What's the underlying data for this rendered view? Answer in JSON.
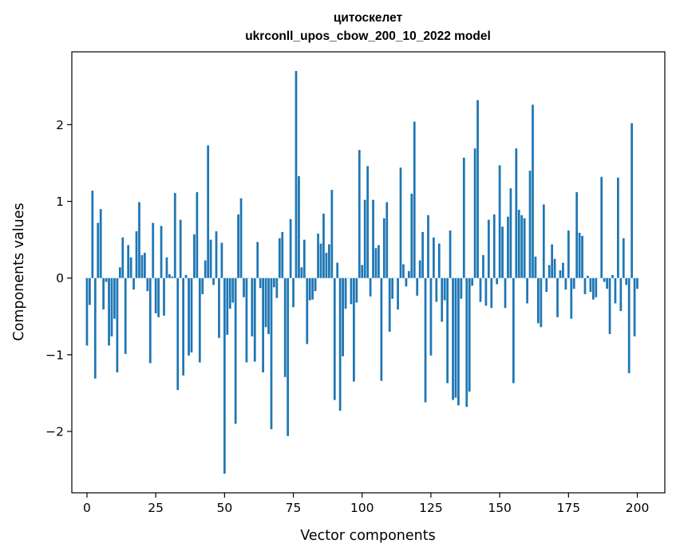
{
  "chart_data": {
    "type": "bar",
    "title": "цитоскелет",
    "subtitle": "ukrconll_upos_cbow_200_10_2022 model",
    "xlabel": "Vector components",
    "ylabel": "Components values",
    "xlim": [
      -5.5,
      210
    ],
    "ylim": [
      -2.8,
      2.95
    ],
    "xticks": [
      0,
      25,
      50,
      75,
      100,
      125,
      150,
      175,
      200
    ],
    "yticks": [
      -2,
      -1,
      0,
      1,
      2
    ],
    "xtick_labels": [
      "0",
      "25",
      "50",
      "75",
      "100",
      "125",
      "150",
      "175",
      "200"
    ],
    "ytick_labels": [
      "−2",
      "−1",
      "0",
      "1",
      "2"
    ],
    "bar_color": "#1f77b4",
    "grid": false,
    "values": [
      -0.88,
      -0.35,
      1.14,
      -1.31,
      0.72,
      0.9,
      -0.41,
      -0.05,
      -0.88,
      -0.76,
      -0.53,
      -1.23,
      0.14,
      0.53,
      -0.99,
      0.43,
      0.27,
      -0.15,
      0.61,
      0.99,
      0.3,
      0.33,
      -0.17,
      -1.11,
      0.72,
      -0.46,
      -0.51,
      0.68,
      -0.49,
      0.27,
      0.05,
      0.02,
      1.11,
      -1.46,
      0.76,
      -1.27,
      0.04,
      -1.01,
      -0.97,
      0.57,
      1.12,
      -1.1,
      -0.21,
      0.23,
      1.73,
      0.5,
      -0.09,
      0.61,
      -0.78,
      0.46,
      -2.55,
      -0.74,
      -0.4,
      -0.32,
      -1.9,
      0.83,
      1.04,
      -0.25,
      -1.1,
      0.0,
      -0.76,
      -1.09,
      0.47,
      -0.13,
      -1.23,
      -0.64,
      -0.73,
      -1.97,
      -0.12,
      -0.26,
      0.52,
      0.6,
      -1.29,
      -2.06,
      0.77,
      -0.38,
      2.7,
      1.33,
      0.14,
      0.5,
      -0.86,
      -0.29,
      -0.28,
      -0.17,
      0.58,
      0.45,
      0.84,
      0.33,
      0.44,
      1.15,
      -1.59,
      0.2,
      -1.73,
      -1.02,
      -0.4,
      0.0,
      -0.34,
      -1.35,
      -0.32,
      1.67,
      0.17,
      1.02,
      1.46,
      -0.24,
      1.02,
      0.39,
      0.43,
      -1.34,
      0.78,
      0.99,
      -0.7,
      -0.27,
      0.0,
      -0.41,
      1.44,
      0.18,
      -0.11,
      0.09,
      1.1,
      2.04,
      -0.23,
      0.23,
      0.6,
      -1.62,
      0.82,
      -1.01,
      0.53,
      -0.31,
      0.45,
      -0.57,
      -0.29,
      -1.37,
      0.62,
      -1.59,
      -1.56,
      -1.66,
      -0.27,
      1.57,
      -1.68,
      -1.48,
      -0.1,
      1.69,
      2.32,
      -0.31,
      0.3,
      -0.36,
      0.76,
      -0.39,
      0.83,
      -0.08,
      1.47,
      0.67,
      -0.39,
      0.8,
      1.17,
      -1.37,
      1.69,
      0.89,
      0.82,
      0.78,
      -0.33,
      1.4,
      2.26,
      0.28,
      -0.59,
      -0.64,
      0.96,
      -0.18,
      0.17,
      0.44,
      0.25,
      -0.51,
      0.1,
      0.2,
      -0.15,
      0.62,
      -0.53,
      -0.14,
      1.12,
      0.59,
      0.55,
      -0.21,
      0.03,
      -0.18,
      -0.28,
      -0.25,
      0.0,
      1.32,
      -0.05,
      -0.14,
      -0.73,
      0.04,
      -0.33,
      1.31,
      -0.43,
      0.52,
      -0.09,
      -1.24,
      2.02,
      -0.76,
      -0.14
    ]
  }
}
